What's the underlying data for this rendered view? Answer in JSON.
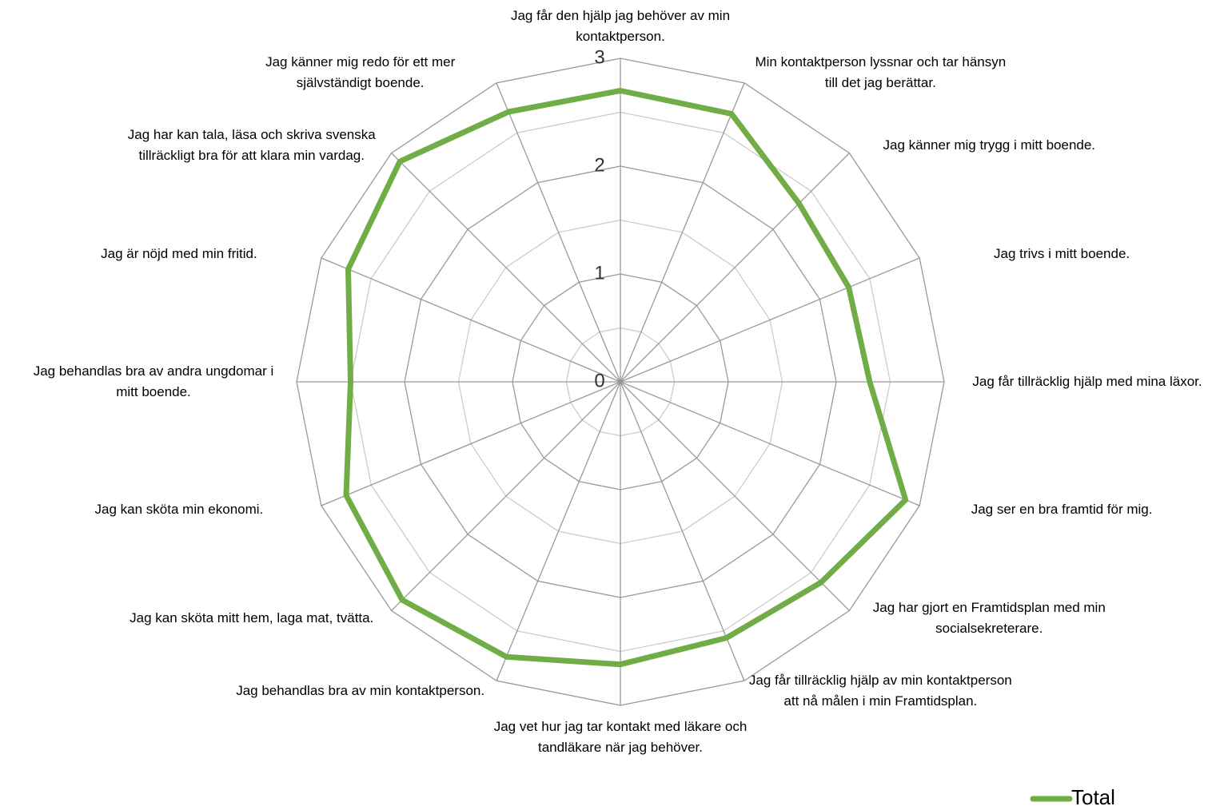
{
  "chart_data": {
    "type": "radar",
    "categories": [
      "Jag får den hjälp jag behöver av min kontaktperson.",
      "Min kontaktperson lyssnar och tar hänsyn till det jag berättar.",
      "Jag känner mig trygg i mitt boende.",
      "Jag trivs i mitt boende.",
      "Jag får tillräcklig hjälp med mina läxor.",
      "Jag ser en bra framtid för mig.",
      "Jag har gjort en Framtidsplan med min socialsekreterare.",
      "Jag får tillräcklig hjälp av min kontaktperson att nå målen i min Framtidsplan.",
      "Jag vet hur jag tar kontakt med läkare och tandläkare när jag behöver.",
      "Jag behandlas bra av min kontaktperson.",
      "Jag kan sköta mitt hem, laga mat, tvätta.",
      "Jag kan sköta min ekonomi.",
      "Jag behandlas bra av andra ungdomar i mitt boende.",
      "Jag är nöjd med min fritid.",
      "Jag har kan tala, läsa och skriva svenska tillräckligt bra för att klara min vardag.",
      "Jag känner mig redo för ett mer självständigt boende."
    ],
    "series": [
      {
        "name": "Total",
        "color": "#70ad47",
        "values": [
          2.7,
          2.69,
          2.34,
          2.29,
          2.31,
          2.86,
          2.63,
          2.57,
          2.62,
          2.76,
          2.86,
          2.75,
          2.5,
          2.73,
          2.89,
          2.71
        ]
      }
    ],
    "ylim": [
      0,
      3
    ],
    "yticks": [
      0,
      1,
      2,
      3
    ],
    "minor_yticks": [
      0.5,
      1.5,
      2.5
    ],
    "grid": true,
    "legend": "bottom-right"
  }
}
